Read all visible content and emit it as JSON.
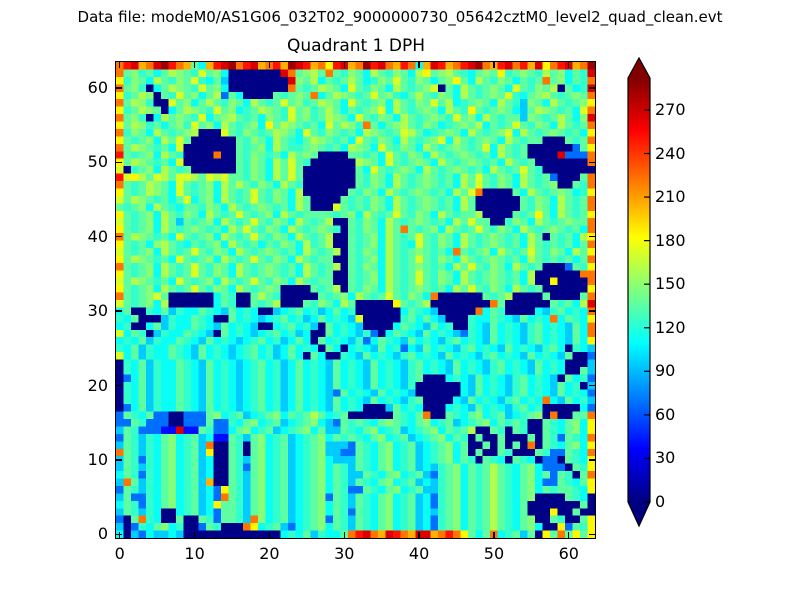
{
  "figure": {
    "suptitle": "Data file: modeM0/AS1G06_032T02_9000000730_05642cztM0_level2_quad_clean.evt",
    "title": "Quadrant 1 DPH",
    "background_color": "#ffffff"
  },
  "chart_data": {
    "type": "heatmap",
    "title": "Quadrant 1 DPH",
    "suptitle": "Data file: modeM0/AS1G06_032T02_9000000730_05642cztM0_level2_quad_clean.evt",
    "grid_size": [
      64,
      64
    ],
    "x_range": [
      -0.5,
      63.5
    ],
    "y_range": [
      -0.5,
      63.5
    ],
    "x_ticks": [
      0,
      10,
      20,
      30,
      40,
      50,
      60
    ],
    "y_ticks": [
      0,
      10,
      20,
      30,
      40,
      50,
      60
    ],
    "colormap": "jet",
    "colorbar": {
      "ticks": [
        0,
        30,
        60,
        90,
        120,
        150,
        180,
        210,
        240,
        270
      ],
      "range": [
        0,
        292
      ],
      "extend": "both",
      "under_arrow_color": "#000080",
      "over_arrow_color": "#800000",
      "outline_color": "#000000",
      "gradient_stops": [
        [
          0.0,
          "#000080"
        ],
        [
          0.125,
          "#0000ff"
        ],
        [
          0.375,
          "#00ffff"
        ],
        [
          0.625,
          "#ffff00"
        ],
        [
          0.875,
          "#ff0000"
        ],
        [
          1.0,
          "#800000"
        ]
      ]
    },
    "value_encoding": {
      "B": 2,
      "n": 40,
      "b": 68,
      "c": 95,
      "t": 112,
      "u": 124,
      "g": 136,
      "G": 148,
      "h": 160,
      "y": 172,
      "Y": 185,
      "O": 205,
      "o": 222,
      "R": 250,
      "r": 265,
      "D": 283
    },
    "rows_top_to_bottom": [
      "oRrOorDRoOgtORrDoRrOoRODrROoYRrOoDRroORotOrROoRrDoORroROrYoRrOoD",
      "ogGugtghGguygGtBBBBBBBrogGhgoguGgthguGgthYgGhgutgGgYugGguhgGtgur",
      "YuGgthguGgyutgcBBBBBBBBrGghtgughgtuGgyguGgtgGYgthguGgtgugogGtguo",
      "ogGuBtghGguygGtBBBBBBBBogughGgtyguGgthgugGyBgthgugGgtyguGghBgtur",
      "YughGBguygGtghbgtBBBBgugGgotghGgugygGutghguGgthgugGgyutgGhgugGgo",
      "oghGuBBygGtghguGgthgugygGughGgtygugGthguGgyghtugGgthgucGgthgugGY",
      "YughGgBtghGguygGtughGguygGughgtgugGythgugGgthguYgugGgtcghGgugtyo",
      "ogGuBthgGguytgGhgugtGguygGughGgtyguGgthgugGguygGthguggcGgughgtGr",
      "YghGugtgGuygGthgugGtYghGgugtyghGuogtgGhguGgtugGghtgugyguGgthgugo",
      "ouGgthgugGhBBByguGgughGgtyguGgugthGgugyhgtugGgthgugGythgugGgugtY",
      "YgugGthgygBBBBBBguGgthgutghGgugtyguGgthgugGythgugGgthguggBBBgugo",
      "oghGgugtyBBBBBBBgugGthguugGgugthGgtyguGgthgugGgugythgugBBBBBBbgY",
      "RgugGthguBBBBoBBguGgugthgGgBBBBggugtyguGgthgugGgugthgugBBBBrbbbo",
      "YghGgugtyBBBBBBBguGgthgyguBBBBBBhGgtygugGgthgugGgugthgugBBBBBBBo",
      "yBugGthgugBBBBBBguGgthgygBBBBBBBgtygugGgthgugGgugthgugyguBBBBBBB",
      "RyYhgyhgyyhgyhygguGgthgygBBBBBBBguGgthgugGgugthgyguGgthgugbBBBgo",
      "ogughGgtygugGthghguGgthguBBBBBBBguGgthgugGgugthgyguGgthgugGBBguo",
      "YgughGgtygugGthgugyguGgthBBBBBBguGgthgugGgugthgyoBBBBgthgugGgtuY",
      "yghGgugtgytgGthgugyguGgthgBBBBguguGgthgugGgugthgBBBBBBguGgthgugo",
      "gugGthgutgguGgthgugGgugthgBBByguguGgthgugGgugthgBBBBBBguGgthgugo",
      "YgugGthguGgthgugygugGthguggggugGthgugyguGgthgugghBBBBgugYgthgugY",
      "ygugGthgcgugGthgugyguGgthgughBBguGgthgugGgugthgyggBBuGgthgugGggo",
      "YgugGthgugGgugthgyguGgthgugGguBguGgthgogugGthgugyguGgthgugGgugto",
      "oghGgugtygugGthgugyguGgthgughBBgugGthgugyguGgthgugGgugthgBgugthY",
      "YgugtGhgutgugGthgugtguGgthughBBgugGthgutyguGgthgugGgugthgugugtgo",
      "ygugGthgugyguGgthgugGgugthgughBguGgthgugGgugtogugGthgugyguGgthgY",
      "YghGgugtygugGthgugyguGgthguggBBgugGthgugyguGgthgugGgugthgugugtgo",
      "ogugGthgugyguGgthgugGgugthgughBguGgthgugGgugthgyguGgthgugBBBbguY",
      "YgugGthgugyguGgthgugGgugthgugBBgugGthgugyguGgthgugGgugthBBBBBBoo",
      "yghGgugtygugGthgugyguGgthguggBBgugGthgugyguGgthgugGgugthBBYBBBBo",
      "YgugGthgugyguGgthgugGgBBBBgughBguGgthgugGgugthgyguGgthgugBBBBBBY",
      "ogugGygBBBBBBtguBBghguBBBBBgugGthgugyguGgtoBBBBBBgughBBBBgBBBBgo",
      "ygugGthBBBBBBtguBBgughBBBguGgthgBBBBBYgughBBBBBBBBogBBBBBBgugthr",
      "tgBButgcuttgutcgtutBBctugtuctgtuBBBBBBtgutcBBBBBotguBBBBtcugtuto",
      "utgBBBcuttgutBBgtutctugtuctgtutcyBBBBBugtgtcBBButtgutcgtutotgutY",
      "tuBBtgcuttgutcgtutcBBtugtucBgtutcBBBBtgutcgtuBButcgtutcugtutcgto",
      "ytguBcuttgutcBgtutctugtuctBBgtutcubBtgutcgtutcbutcgtutcugtutcgto",
      "tutgcuttgutcgtutctugtuctgtBgtutcubtgutcgtutcugtutcgtutcugtutcgtY",
      "utgcuttgutcgtutctugtuctgtutBgtBtutcgtubtcgtutcugtutcgtutcugtButc",
      "ytgcuttgutcgtutctugtuctgtBgtBButcgtutcugtutcgtutcugtutcgtutcgBBb",
      "ButgcuttgutcgtutctugtuctgtutcgtutcgtutcugtutcgtutcugtutcgtutBBBc",
      "ButgcuttgutcgtutctugtuctgtutcgtutcgtutcugtutcgtutcugtutcgtutBBgc",
      "BbtgcuttgutcgtutctugtuctgtutcgtutcgtutcugBBBtutcgtutcugtutcBgtub",
      "ButgcuttgutcgtutctugtuctgtutcgtutcgtutcuBBBBBBtcgtutcugtutcgtuBc",
      "ButgcuttgutcgtutctugtuctgtutcbgtutcgtutcBBBBBBtcgtutcugtutcgtutb",
      "ButgcuttgutcgtutctugtuctgtutcgtutcgtutcugBBBBtcgtutcugtutotcgtuc",
      "BbtgcuttgutcgtutctugtuctgtutcgtutBBBcgtutBBBtutcgtutcugtuBBBBBtb",
      "bgutgbbBBbbbgGtugctugGtgughgtugBBBBBBgutgoBBgutgGtugctugGBoBBggo",
      "bbgubbbBBbbbgbbutgGtugctugGtcbgugutgGgutgGtugctugGtguguBBgutgGtY",
      "cgubbbnnrnngubbtgGtugctugGtgccgutgGtugctugGtgughBBguBguBBgutgGtY",
      "bgucutgGtugctnngucgGtugctugGtgugutgGtugctugGtguBgBBgBBBgBgubguto",
      "cgucutgGtugcoBBguBgGtugctugGcccbgutgGtugctugGtgBBgBgBgBoBgutgGtY",
      "ogucutgGtugcYBBguBgGtugctugGccbbgutgGtugctugGtgBgBBguBBBgubbguto",
      "cgubutgGtugctBBgucgGtugctugGtcccgutgGtugctugGtguBgutBgutBbbBgutY",
      "cgucutgGtugctBBgubgGtugctugGtgucgutgGtugctcugGtgughgutgGtbbbBguY",
      "tgubutgGtugctBBgucgGtugctugGtguccgutgGtugcbugGtgughgutgGtgbguBgo",
      "cogcutgGtugcOBBgucgGtugctugGtgucgutgGtugctcugGtgughgutgGtbbgutgY",
      "bgucutgGtugctbYgucgGtugctugGtgubbgutgGtugccugGtgughgutgGtguggutY",
      "cgbbutgGtugctbogucgGtugctugGbgucgutgGtugctbugGtgughgutgGBBBBgutB",
      "tgubutgGtugctYggucgGtugctugGtgucgutgGtugctbugGtgughgutgBBBBBBBgB",
      "cgucutBBtugctbggucgGtugctugGtgubgutgGtugctcugGtgughgutgBBBYBBgBB",
      "bBgoutBBgBBgubggucoGtugctugGbgucgutgGtugctbugGtgughgutgGBBguBBgY",
      "cBbutgGtuBBbguBBBoYtugcbtugGtgucgutgGtugctbugGtgughgutgGtBBYbguY",
      "tBcbtcctcBBBBBBBBBBBBBtutgcuttgoRroOrRoOrrOoRoYgtgotugcgBYgogYgY"
    ]
  }
}
